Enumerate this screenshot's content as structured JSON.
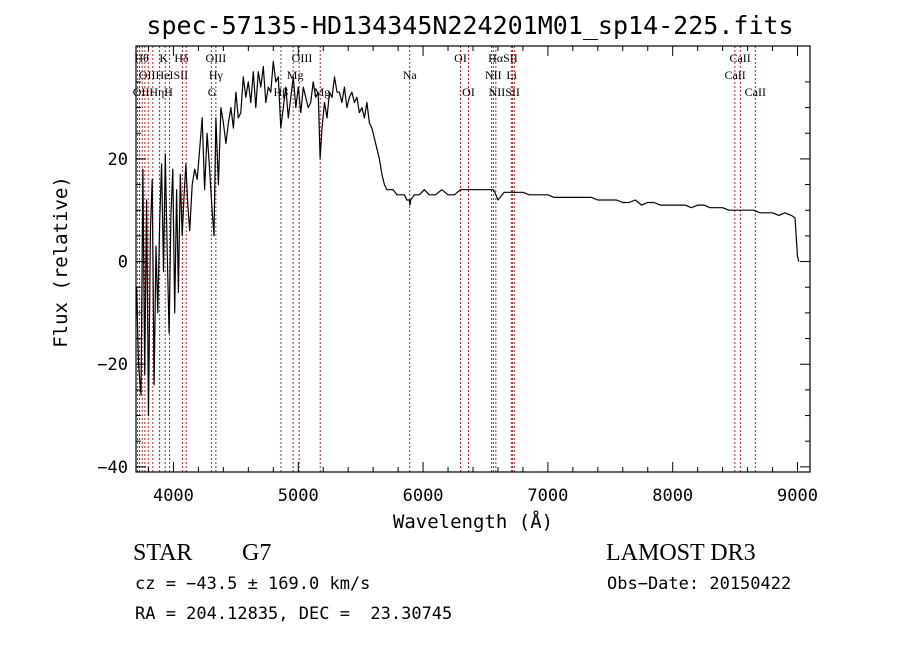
{
  "chart_data": {
    "type": "line",
    "title": "spec-57135-HD134345N224201M01_sp14-225.fits",
    "xlabel": "Wavelength (Å)",
    "ylabel": "Flux (relative)",
    "xlim": [
      3700,
      9100
    ],
    "ylim": [
      -41,
      42
    ],
    "x_ticks": [
      4000,
      5000,
      6000,
      7000,
      8000,
      9000
    ],
    "y_ticks": [
      -40,
      -20,
      0,
      20
    ],
    "grid": false,
    "series": [
      {
        "name": "flux",
        "x": [
          3705,
          3720,
          3740,
          3755,
          3770,
          3785,
          3800,
          3815,
          3830,
          3845,
          3860,
          3875,
          3890,
          3905,
          3920,
          3935,
          3950,
          3965,
          3980,
          3995,
          4010,
          4025,
          4040,
          4055,
          4070,
          4085,
          4100,
          4115,
          4130,
          4150,
          4170,
          4190,
          4210,
          4230,
          4250,
          4270,
          4290,
          4310,
          4325,
          4340,
          4360,
          4380,
          4400,
          4420,
          4440,
          4460,
          4480,
          4500,
          4520,
          4540,
          4560,
          4580,
          4600,
          4620,
          4640,
          4660,
          4680,
          4700,
          4720,
          4740,
          4760,
          4780,
          4800,
          4820,
          4840,
          4860,
          4880,
          4900,
          4920,
          4940,
          4960,
          4980,
          5000,
          5020,
          5040,
          5060,
          5080,
          5100,
          5120,
          5140,
          5160,
          5175,
          5190,
          5210,
          5230,
          5250,
          5270,
          5290,
          5310,
          5330,
          5350,
          5370,
          5390,
          5410,
          5430,
          5450,
          5470,
          5490,
          5510,
          5530,
          5550,
          5570,
          5590,
          5610,
          5630,
          5650,
          5670,
          5690,
          5710,
          5730,
          5760,
          5790,
          5820,
          5850,
          5870,
          5890,
          5895,
          5900,
          5930,
          5970,
          6010,
          6050,
          6100,
          6150,
          6200,
          6250,
          6300,
          6350,
          6400,
          6450,
          6500,
          6550,
          6563,
          6575,
          6600,
          6650,
          6700,
          6750,
          6800,
          6850,
          6900,
          6950,
          7000,
          7050,
          7100,
          7150,
          7200,
          7250,
          7300,
          7350,
          7400,
          7450,
          7500,
          7550,
          7600,
          7650,
          7700,
          7750,
          7800,
          7850,
          7900,
          7950,
          8000,
          8050,
          8100,
          8150,
          8200,
          8250,
          8300,
          8350,
          8400,
          8450,
          8500,
          8550,
          8600,
          8650,
          8700,
          8750,
          8800,
          8850,
          8900,
          8950,
          8980,
          9000,
          9010
        ],
        "values": [
          -5,
          -20,
          -26,
          18,
          -22,
          12,
          -30,
          6,
          16,
          -24,
          3,
          -10,
          8,
          19,
          -2,
          21,
          2,
          -14,
          9,
          18,
          -10,
          14,
          -6,
          17,
          5,
          13,
          19,
          11,
          6,
          15,
          18,
          16,
          22,
          28,
          14,
          25,
          18,
          10,
          5,
          28,
          15,
          30,
          27,
          23,
          27,
          30,
          26,
          33,
          28,
          29,
          36,
          32,
          35,
          31,
          37,
          30,
          37,
          34,
          38,
          31,
          34,
          33,
          39,
          35,
          36,
          26,
          30,
          34,
          28,
          32,
          36,
          30,
          34,
          29,
          34,
          32,
          30,
          31,
          35,
          32,
          33,
          20,
          26,
          31,
          28,
          33,
          32,
          36,
          33,
          33,
          31,
          34,
          30,
          32,
          33,
          31,
          32,
          29,
          30,
          28,
          31,
          27,
          26,
          24,
          22,
          20,
          17,
          15,
          14,
          14,
          14,
          13,
          13,
          13,
          12,
          12,
          11,
          12,
          13,
          13,
          14,
          13,
          13,
          14,
          13,
          13,
          14,
          14,
          14,
          14,
          14,
          14,
          14,
          13.5,
          12,
          13.5,
          13.5,
          13.5,
          13.5,
          13,
          13,
          13,
          13,
          12.5,
          12.5,
          12.5,
          12.5,
          12.5,
          12.5,
          12.5,
          12,
          12,
          12,
          12,
          11.5,
          11.5,
          12,
          11,
          11.5,
          11.5,
          11,
          11,
          11,
          11,
          11,
          10.5,
          11,
          11,
          10.5,
          10.5,
          10.5,
          10,
          10,
          10,
          10,
          10,
          9.5,
          9.5,
          9.5,
          9,
          9.5,
          9,
          8.5,
          1,
          0
        ]
      }
    ],
    "line_markers": [
      {
        "x": 3713,
        "labels": [
          "Hθ",
          "OII",
          "OII"
        ]
      },
      {
        "x": 3728,
        "labels": []
      },
      {
        "x": 3750,
        "labels": []
      },
      {
        "x": 3771,
        "labels": []
      },
      {
        "x": 3798,
        "labels": []
      },
      {
        "x": 3835,
        "labels": [
          "HeI"
        ]
      },
      {
        "x": 3889,
        "labels": [
          "Hη"
        ]
      },
      {
        "x": 3934,
        "labels": [
          "K"
        ]
      },
      {
        "x": 3969,
        "labels": [
          "H"
        ]
      },
      {
        "x": 4072,
        "labels": [
          "SII"
        ]
      },
      {
        "x": 4102,
        "labels": [
          "Hδ"
        ]
      },
      {
        "x": 4304,
        "labels": [
          "OIII"
        ]
      },
      {
        "x": 4340,
        "labels": [
          "Hγ",
          "G"
        ]
      },
      {
        "x": 4861,
        "labels": [
          "Hβ"
        ]
      },
      {
        "x": 4959,
        "labels": [
          "OIII"
        ]
      },
      {
        "x": 5007,
        "labels": [
          "OIII"
        ]
      },
      {
        "x": 5176,
        "labels": [
          "Mg"
        ]
      },
      {
        "x": 5893,
        "labels": [
          "Na"
        ]
      },
      {
        "x": 6300,
        "labels": [
          "OI"
        ]
      },
      {
        "x": 6364,
        "labels": [
          "OI"
        ]
      },
      {
        "x": 6548,
        "labels": [
          "NII"
        ]
      },
      {
        "x": 6563,
        "labels": [
          "Hα"
        ]
      },
      {
        "x": 6583,
        "labels": [
          "NII"
        ]
      },
      {
        "x": 6707,
        "labels": [
          "Li"
        ]
      },
      {
        "x": 6716,
        "labels": [
          "SII"
        ]
      },
      {
        "x": 6731,
        "labels": [
          "SII"
        ]
      },
      {
        "x": 8498,
        "labels": [
          "CaII"
        ]
      },
      {
        "x": 8542,
        "labels": [
          "CaII"
        ]
      },
      {
        "x": 8662,
        "labels": [
          "CaII"
        ]
      }
    ],
    "marker_text": [
      {
        "text": "Hθ",
        "x": 3745,
        "row": 0
      },
      {
        "text": "K",
        "x": 3922,
        "row": 0
      },
      {
        "text": "Hδ",
        "x": 4065,
        "row": 0
      },
      {
        "text": "OIII",
        "x": 4340,
        "row": 0
      },
      {
        "text": "OIII",
        "x": 5030,
        "row": 0
      },
      {
        "text": "OI",
        "x": 6300,
        "row": 0
      },
      {
        "text": "HαSII",
        "x": 6640,
        "row": 0
      },
      {
        "text": "CaII",
        "x": 8540,
        "row": 0
      },
      {
        "text": "OIIHeISII",
        "x": 3920,
        "row": 1
      },
      {
        "text": "Hγ",
        "x": 4340,
        "row": 1
      },
      {
        "text": "Mg",
        "x": 4975,
        "row": 1
      },
      {
        "text": "Na",
        "x": 5893,
        "row": 1
      },
      {
        "text": "NII",
        "x": 6563,
        "row": 1
      },
      {
        "text": "Li",
        "x": 6710,
        "row": 1
      },
      {
        "text": "CaII",
        "x": 8500,
        "row": 1
      },
      {
        "text": "OIIHηH",
        "x": 3835,
        "row": 2
      },
      {
        "text": "G",
        "x": 4310,
        "row": 2
      },
      {
        "text": "Hβ",
        "x": 4861,
        "row": 2
      },
      {
        "text": "Mg",
        "x": 5190,
        "row": 2
      },
      {
        "text": "OI",
        "x": 6364,
        "row": 2
      },
      {
        "text": "NIISII",
        "x": 6650,
        "row": 2
      },
      {
        "text": "CaII",
        "x": 8662,
        "row": 2
      }
    ],
    "colors": {
      "axis": "#000000",
      "line": "#000000",
      "marker": "#b22222"
    }
  },
  "info": {
    "object_class": "STAR",
    "subclass": "G7",
    "survey": "LAMOST DR3",
    "cz": "cz = −43.5 ± 169.0 km/s",
    "obs_date": "Obs−Date: 20150422",
    "coords": "RA = 204.12835, DEC =  23.30745"
  }
}
